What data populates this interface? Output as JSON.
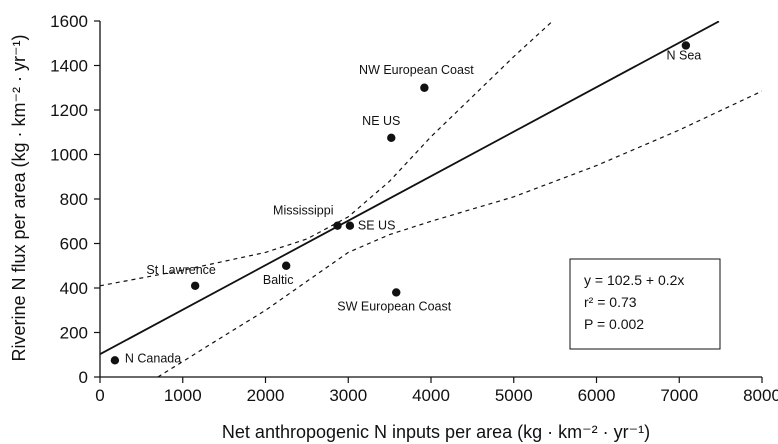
{
  "chart_data": {
    "type": "scatter",
    "xlabel": "Net anthropogenic N inputs per area (kg · km⁻² · yr⁻¹)",
    "ylabel": "Riverine N flux per area (kg · km⁻² · yr⁻¹)",
    "xlim": [
      0,
      8000
    ],
    "ylim": [
      0,
      1600
    ],
    "xticks": [
      0,
      1000,
      2000,
      3000,
      4000,
      5000,
      6000,
      7000,
      8000
    ],
    "yticks": [
      0,
      200,
      400,
      600,
      800,
      1000,
      1200,
      1400,
      1600
    ],
    "grid": false,
    "points": [
      {
        "label": "N Canada",
        "x": 180,
        "y": 75
      },
      {
        "label": "St Lawrence",
        "x": 1150,
        "y": 410
      },
      {
        "label": "Baltic",
        "x": 2250,
        "y": 500
      },
      {
        "label": "Mississippi",
        "x": 2870,
        "y": 680
      },
      {
        "label": "SE US",
        "x": 3020,
        "y": 680
      },
      {
        "label": "NE US",
        "x": 3520,
        "y": 1075
      },
      {
        "label": "NW European Coast",
        "x": 3920,
        "y": 1300
      },
      {
        "label": "SW European Coast",
        "x": 3580,
        "y": 380
      },
      {
        "label": "N Sea",
        "x": 7080,
        "y": 1490
      }
    ],
    "regression": {
      "intercept": 102.5,
      "slope": 0.2
    },
    "confidence_band": {
      "upper": [
        [
          0,
          410
        ],
        [
          1000,
          480
        ],
        [
          2000,
          560
        ],
        [
          2500,
          620
        ],
        [
          3000,
          720
        ],
        [
          3500,
          880
        ],
        [
          4000,
          1080
        ],
        [
          4500,
          1260
        ],
        [
          5000,
          1440
        ],
        [
          5500,
          1610
        ]
      ],
      "lower": [
        [
          700,
          0
        ],
        [
          1500,
          185
        ],
        [
          2000,
          300
        ],
        [
          2500,
          430
        ],
        [
          3000,
          560
        ],
        [
          3500,
          640
        ],
        [
          4000,
          700
        ],
        [
          5000,
          810
        ],
        [
          6000,
          950
        ],
        [
          7000,
          1110
        ],
        [
          8000,
          1285
        ]
      ]
    },
    "annotation": {
      "equation": "y = 102.5 + 0.2x",
      "r2": "r² = 0.73",
      "p": "P = 0.002"
    }
  }
}
